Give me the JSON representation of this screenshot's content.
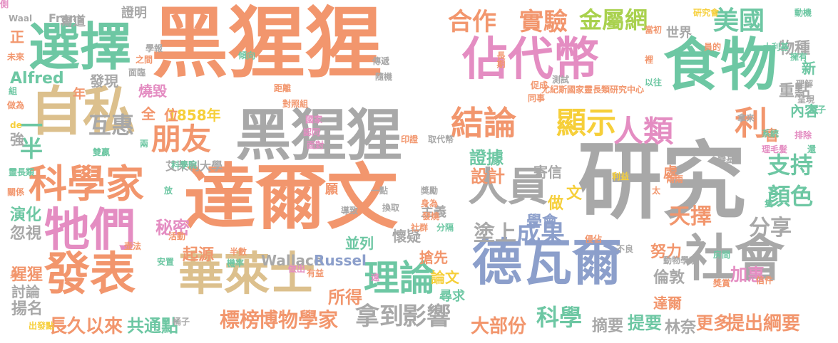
{
  "palette": {
    "orange": "#F2966D",
    "gray": "#A8A8A8",
    "green": "#6DC7A3",
    "blue": "#8C9FCB",
    "pink": "#E48DC2",
    "lime": "#A9D14E",
    "yellow": "#F6CF3A",
    "tan": "#DCC08D"
  },
  "words": [
    {
      "text": "黑猩猩",
      "color": "orange"
    },
    {
      "text": "研究",
      "color": "gray"
    },
    {
      "text": "達爾文",
      "color": "orange"
    },
    {
      "text": "黑猩猩",
      "color": "gray"
    },
    {
      "text": "食物",
      "color": "green"
    },
    {
      "text": "選擇",
      "color": "green"
    },
    {
      "text": "自私",
      "color": "tan"
    },
    {
      "text": "佔代幣",
      "color": "pink"
    },
    {
      "text": "德瓦爾",
      "color": "blue"
    },
    {
      "text": "社會",
      "color": "gray"
    },
    {
      "text": "發表",
      "color": "orange"
    },
    {
      "text": "華萊士",
      "color": "tan"
    },
    {
      "text": "牠們",
      "color": "pink"
    },
    {
      "text": "科學家",
      "color": "orange"
    },
    {
      "text": "人員",
      "color": "gray"
    },
    {
      "text": "朋友",
      "color": "orange"
    },
    {
      "text": "結論",
      "color": "orange"
    },
    {
      "text": "顯示",
      "color": "yellow"
    },
    {
      "text": "人類",
      "color": "pink"
    },
    {
      "text": "利",
      "color": "orange"
    },
    {
      "text": "理論",
      "color": "green"
    },
    {
      "text": "合作",
      "color": "orange"
    },
    {
      "text": "實驗",
      "color": "orange"
    },
    {
      "text": "金屬網",
      "color": "lime"
    },
    {
      "text": "美國",
      "color": "green"
    },
    {
      "text": "拿到",
      "color": "gray"
    },
    {
      "text": "影響",
      "color": "gray"
    },
    {
      "text": "成果",
      "color": "blue"
    },
    {
      "text": "塗上",
      "color": "gray"
    },
    {
      "text": "互惠",
      "color": "gray"
    },
    {
      "text": "一半",
      "color": "green"
    },
    {
      "text": "科學",
      "color": "green"
    },
    {
      "text": "支持",
      "color": "green"
    },
    {
      "text": "顏色",
      "color": "green"
    },
    {
      "text": "天擇",
      "color": "orange"
    },
    {
      "text": "分享",
      "color": "gray"
    },
    {
      "text": "博物學家",
      "color": "orange"
    },
    {
      "text": "標榜",
      "color": "orange"
    },
    {
      "text": "長久以來",
      "color": "orange"
    },
    {
      "text": "共通點",
      "color": "green"
    },
    {
      "text": "大部份",
      "color": "orange"
    },
    {
      "text": "提出綱要",
      "color": "orange"
    },
    {
      "text": "摘要",
      "color": "gray"
    },
    {
      "text": "提要",
      "color": "green"
    },
    {
      "text": "林奈",
      "color": "gray"
    },
    {
      "text": "更多",
      "color": "orange"
    },
    {
      "text": "所得",
      "color": "orange"
    },
    {
      "text": "揚名",
      "color": "gray"
    },
    {
      "text": "討論",
      "color": "gray"
    },
    {
      "text": "猩猩",
      "color": "orange"
    },
    {
      "text": "演化",
      "color": "green"
    },
    {
      "text": "忽視",
      "color": "gray"
    },
    {
      "text": "秘密",
      "color": "pink"
    },
    {
      "text": "起源",
      "color": "orange"
    },
    {
      "text": "Wallace",
      "color": "gray"
    },
    {
      "text": "Russel",
      "color": "blue"
    },
    {
      "text": "搶先",
      "color": "orange"
    },
    {
      "text": "論文",
      "color": "yellow"
    },
    {
      "text": "尋求",
      "color": "green"
    },
    {
      "text": "倫敦",
      "color": "gray"
    },
    {
      "text": "達爾",
      "color": "orange"
    },
    {
      "text": "努力",
      "color": "orange"
    },
    {
      "text": "加惠",
      "color": "pink"
    },
    {
      "text": "物種",
      "color": "gray"
    },
    {
      "text": "世界",
      "color": "gray"
    },
    {
      "text": "新",
      "color": "green"
    },
    {
      "text": "重點",
      "color": "gray"
    },
    {
      "text": "內容",
      "color": "green"
    },
    {
      "text": "處",
      "color": "orange"
    },
    {
      "text": "書",
      "color": "orange"
    },
    {
      "text": "證據",
      "color": "green"
    },
    {
      "text": "設計",
      "color": "orange"
    },
    {
      "text": "寄信",
      "color": "gray"
    },
    {
      "text": "做",
      "color": "yellow"
    },
    {
      "text": "文",
      "color": "yellow"
    },
    {
      "text": "學會",
      "color": "blue"
    },
    {
      "text": "並列",
      "color": "green"
    },
    {
      "text": "懷疑",
      "color": "gray"
    },
    {
      "text": "主義",
      "color": "gray"
    },
    {
      "text": "Alfred",
      "color": "green"
    },
    {
      "text": "年",
      "color": "orange"
    },
    {
      "text": "發現",
      "color": "gray"
    },
    {
      "text": "燒毀",
      "color": "pink"
    },
    {
      "text": "全",
      "color": "orange"
    },
    {
      "text": "1858年",
      "color": "yellow"
    },
    {
      "text": "位",
      "color": "orange"
    },
    {
      "text": "證明",
      "color": "gray"
    },
    {
      "text": "寫道",
      "color": "gray"
    },
    {
      "text": "Frans",
      "color": "gray"
    },
    {
      "text": "正",
      "color": "orange"
    },
    {
      "text": "強",
      "color": "gray"
    },
    {
      "text": "艾茉利大學",
      "color": "gray"
    },
    {
      "text": "願",
      "color": "orange"
    },
    {
      "text": "印證",
      "color": "orange"
    },
    {
      "text": "取代幣",
      "color": "gray"
    },
    {
      "text": "尤紀斯國家靈長類研究中心",
      "color": "orange"
    },
    {
      "text": "傳遞",
      "color": "gray"
    },
    {
      "text": "隨機",
      "color": "gray"
    },
    {
      "text": "對照組",
      "color": "orange"
    },
    {
      "text": "國家",
      "color": "pink"
    },
    {
      "text": "認同",
      "color": "pink"
    },
    {
      "text": "面對",
      "color": "pink"
    },
    {
      "text": "距離",
      "color": "orange"
    },
    {
      "text": "傾向",
      "color": "green"
    },
    {
      "text": "長期",
      "color": "orange"
    },
    {
      "text": "促成",
      "color": "orange"
    },
    {
      "text": "同事",
      "color": "orange"
    },
    {
      "text": "測試",
      "color": "gray"
    },
    {
      "text": "以往",
      "color": "green"
    },
    {
      "text": "理解",
      "color": "gray"
    },
    {
      "text": "呈現",
      "color": "gray"
    },
    {
      "text": "電子",
      "color": "green"
    },
    {
      "text": "動機",
      "color": "green"
    },
    {
      "text": "大利基",
      "color": "green"
    },
    {
      "text": "研究會",
      "color": "yellow"
    },
    {
      "text": "當初",
      "color": "orange"
    },
    {
      "text": "員的",
      "color": "orange"
    },
    {
      "text": "學報",
      "color": "gray"
    },
    {
      "text": "之間",
      "color": "orange"
    },
    {
      "text": "科學院",
      "color": "green"
    },
    {
      "text": "面臨",
      "color": "gray"
    },
    {
      "text": "雙贏",
      "color": "green"
    },
    {
      "text": "靈長類",
      "color": "green"
    },
    {
      "text": "關係",
      "color": "orange"
    },
    {
      "text": "身",
      "color": "orange"
    },
    {
      "text": "出發點",
      "color": "yellow"
    },
    {
      "text": "桶子",
      "color": "gray"
    },
    {
      "text": "有益",
      "color": "orange"
    },
    {
      "text": "半數",
      "color": "orange"
    },
    {
      "text": "機率",
      "color": "green"
    },
    {
      "text": "做出",
      "color": "pink"
    },
    {
      "text": "遠",
      "color": "pink"
    },
    {
      "text": "導致",
      "color": "gray"
    },
    {
      "text": "換取",
      "color": "gray"
    },
    {
      "text": "一點",
      "color": "gray"
    },
    {
      "text": "獎勵",
      "color": "gray"
    },
    {
      "text": "身為",
      "color": "orange"
    },
    {
      "text": "發燒",
      "color": "orange"
    },
    {
      "text": "社群",
      "color": "orange"
    },
    {
      "text": "分隔",
      "color": "green"
    },
    {
      "text": "侵佔",
      "color": "orange"
    },
    {
      "text": "不良",
      "color": "gray"
    },
    {
      "text": "動物學家",
      "color": "gray"
    },
    {
      "text": "獎賞",
      "color": "orange"
    },
    {
      "text": "房間",
      "color": "green"
    },
    {
      "text": "信件",
      "color": "orange"
    },
    {
      "text": "太",
      "color": "orange"
    },
    {
      "text": "兩兩",
      "color": "orange"
    },
    {
      "text": "利益",
      "color": "yellow"
    },
    {
      "text": "變基",
      "color": "gray"
    },
    {
      "text": "理毛髮",
      "color": "pink"
    },
    {
      "text": "系統",
      "color": "green"
    },
    {
      "text": "拿來",
      "color": "gray"
    },
    {
      "text": "排除",
      "color": "pink"
    },
    {
      "text": "還",
      "color": "green"
    },
    {
      "text": "壶法",
      "color": "orange"
    },
    {
      "text": "活動",
      "color": "orange"
    },
    {
      "text": "安置",
      "color": "green"
    },
    {
      "text": "放",
      "color": "green"
    },
    {
      "text": "兩",
      "color": "green"
    },
    {
      "text": "de",
      "color": "yellow"
    },
    {
      "text": "Waal",
      "color": "gray"
    },
    {
      "text": "未來",
      "color": "orange"
    },
    {
      "text": "組",
      "color": "green"
    },
    {
      "text": "做為",
      "color": "orange"
    },
    {
      "text": "擁有",
      "color": "green"
    },
    {
      "text": "隻",
      "color": "green"
    },
    {
      "text": "裡",
      "color": "orange"
    },
    {
      "text": "側",
      "color": "pink"
    }
  ]
}
